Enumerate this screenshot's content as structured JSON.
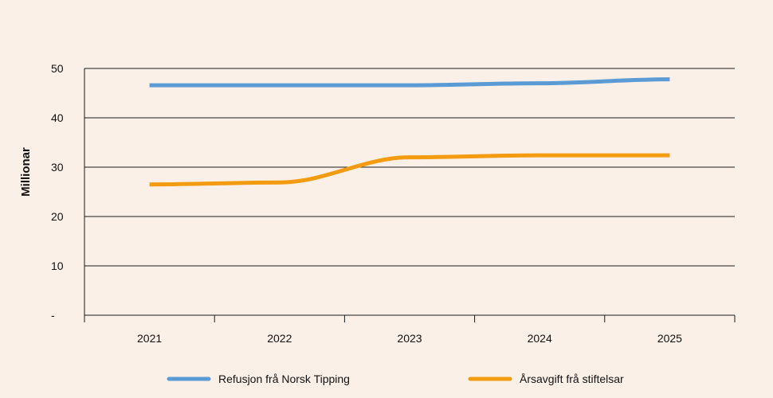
{
  "chart_data": {
    "type": "line",
    "categories": [
      "2021",
      "2022",
      "2023",
      "2024",
      "2025"
    ],
    "series": [
      {
        "name": "Refusjon frå Norsk Tipping",
        "color": "#5b9bd5",
        "values": [
          46.6,
          46.6,
          46.6,
          47.0,
          47.8
        ]
      },
      {
        "name": "Årsavgift frå stiftelsar",
        "color": "#f39c12",
        "values": [
          26.5,
          26.9,
          32.0,
          32.4,
          32.4
        ]
      }
    ],
    "title": "",
    "xlabel": "",
    "ylabel": "Millionar",
    "ylim": [
      0,
      50
    ],
    "yticks": [
      {
        "value": 0,
        "label": "-"
      },
      {
        "value": 10,
        "label": "10"
      },
      {
        "value": 20,
        "label": "20"
      },
      {
        "value": 30,
        "label": "30"
      },
      {
        "value": 40,
        "label": "40"
      },
      {
        "value": 50,
        "label": "50"
      }
    ],
    "grid": true,
    "legend": "bottom"
  }
}
